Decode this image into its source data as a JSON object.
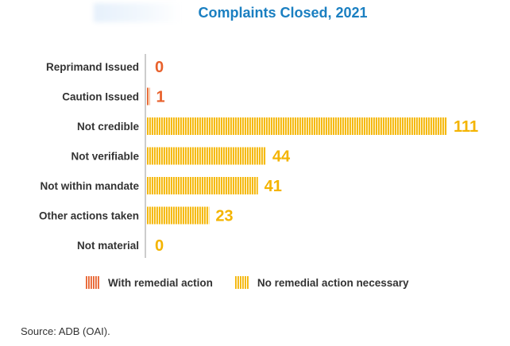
{
  "chart_data": {
    "type": "bar",
    "orientation": "horizontal",
    "title": "Complaints Closed, 2021",
    "categories": [
      "Reprimand Issued",
      "Caution Issued",
      "Not credible",
      "Not verifiable",
      "Not within mandate",
      "Other actions taken",
      "Not material"
    ],
    "series": [
      {
        "name": "With remedial action",
        "color": "#e8612c",
        "values": [
          0,
          1,
          null,
          null,
          null,
          null,
          null
        ]
      },
      {
        "name": "No remedial action necessary",
        "color": "#f4b400",
        "values": [
          null,
          null,
          111,
          44,
          41,
          23,
          0
        ]
      }
    ],
    "data_labels": [
      "0",
      "1",
      "111",
      "44",
      "41",
      "23",
      "0"
    ],
    "xlim": [
      0,
      111
    ],
    "grid": false,
    "legend_position": "bottom"
  },
  "source": "Source: ADB (OAI)."
}
